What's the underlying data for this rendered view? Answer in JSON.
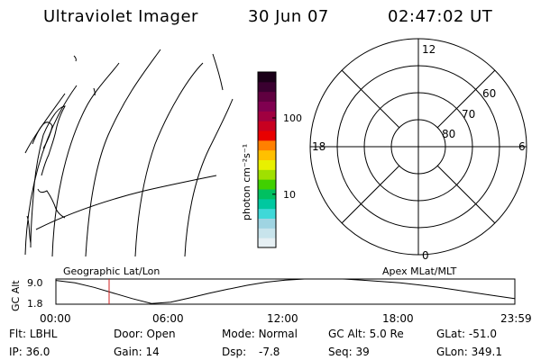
{
  "header": {
    "instrument": "Ultraviolet Imager",
    "date": "30 Jun 07",
    "time": "02:47:02 UT"
  },
  "colorbar": {
    "label": "photon cm⁻²s⁻¹",
    "ticks": [
      {
        "value": 100,
        "label": "100"
      },
      {
        "value": 10,
        "label": "10"
      }
    ],
    "colors": [
      "#e6f0f4",
      "#c8e4ec",
      "#9fd4e2",
      "#40d8d8",
      "#00c8a0",
      "#00c060",
      "#40d000",
      "#a0e000",
      "#e8f000",
      "#ffc000",
      "#ff8000",
      "#e80000",
      "#c80020",
      "#a00040",
      "#800050",
      "#600040",
      "#3a0030",
      "#1a0018"
    ]
  },
  "polar_plot": {
    "mlt_labels": {
      "top": "12",
      "left": "18",
      "right": "6",
      "bottom": "0"
    },
    "lat_labels": [
      "60",
      "70",
      "80"
    ]
  },
  "orbit": {
    "left_label": "Geographic Lat/Lon",
    "right_label": "Apex MLat/MLT",
    "ylabel": "GC Alt",
    "ytick_top": "9.0",
    "ytick_bottom": "1.8",
    "time_labels": [
      "00:00",
      "06:00",
      "12:00",
      "18:00",
      "23:59"
    ]
  },
  "chart_data": {
    "type": "line",
    "xlabel": "",
    "ylabel": "GC Alt",
    "x": [
      0,
      1,
      2,
      3,
      4,
      5,
      6,
      7,
      8,
      9,
      10,
      11,
      12,
      13,
      14,
      15,
      16,
      17,
      18,
      19,
      20,
      21,
      22,
      23,
      23.98
    ],
    "series": [
      {
        "values": [
          8.6,
          7.9,
          6.6,
          5.0,
          3.4,
          2.0,
          2.4,
          3.6,
          4.9,
          6.1,
          7.2,
          8.1,
          8.7,
          9.0,
          9.1,
          9.0,
          8.7,
          8.3,
          7.9,
          7.3,
          6.6,
          5.8,
          5.0,
          4.2,
          3.4
        ]
      }
    ],
    "ylim": [
      1.8,
      9.0
    ],
    "xlim": [
      0,
      24
    ],
    "current_time_hours": 2.78
  },
  "info": {
    "filter_label": "Flt:",
    "filter_value": "LBHL",
    "ip_label": "IP:",
    "ip_value": "36.0",
    "door_label": "Door:",
    "door_value": "Open",
    "gain_label": "Gain:",
    "gain_value": "14",
    "mode_label": "Mode:",
    "mode_value": "Normal",
    "dsp_label": "Dsp:",
    "dsp_value": "-7.8",
    "gcalt_label": "GC Alt:",
    "gcalt_value": "5.0 Re",
    "seq_label": "Seq:",
    "seq_value": "39",
    "glat_label": "GLat:",
    "glat_value": "-51.0",
    "glon_label": "GLon:",
    "glon_value": "349.1"
  }
}
